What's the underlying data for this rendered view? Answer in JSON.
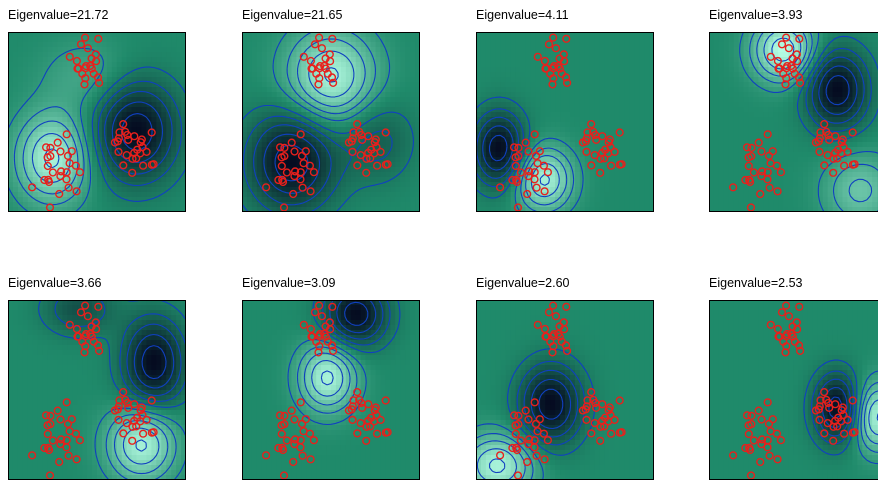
{
  "chart_data": [
    {
      "type": "heatmap",
      "title": "Eigenvalue=21.72",
      "eigenvalue": 21.72,
      "blobs": [
        {
          "cx": 0.25,
          "cy": 0.7,
          "amp": 0.9,
          "sx": 0.14,
          "sy": 0.17
        },
        {
          "cx": 0.72,
          "cy": 0.55,
          "amp": -1.0,
          "sx": 0.16,
          "sy": 0.19
        },
        {
          "cx": 0.45,
          "cy": 0.25,
          "amp": 0.25,
          "sx": 0.18,
          "sy": 0.14
        }
      ]
    },
    {
      "type": "heatmap",
      "title": "Eigenvalue=21.65",
      "eigenvalue": 21.65,
      "blobs": [
        {
          "cx": 0.5,
          "cy": 0.25,
          "amp": 0.9,
          "sx": 0.17,
          "sy": 0.18
        },
        {
          "cx": 0.28,
          "cy": 0.72,
          "amp": -1.0,
          "sx": 0.17,
          "sy": 0.19
        },
        {
          "cx": 0.76,
          "cy": 0.6,
          "amp": -0.35,
          "sx": 0.14,
          "sy": 0.16
        }
      ]
    },
    {
      "type": "heatmap",
      "title": "Eigenvalue=4.11",
      "eigenvalue": 4.11,
      "blobs": [
        {
          "cx": 0.13,
          "cy": 0.65,
          "amp": -1.0,
          "sx": 0.1,
          "sy": 0.14
        },
        {
          "cx": 0.38,
          "cy": 0.82,
          "amp": 0.9,
          "sx": 0.11,
          "sy": 0.12
        }
      ]
    },
    {
      "type": "heatmap",
      "title": "Eigenvalue=3.93",
      "eigenvalue": 3.93,
      "blobs": [
        {
          "cx": 0.42,
          "cy": 0.1,
          "amp": 1.0,
          "sx": 0.12,
          "sy": 0.12
        },
        {
          "cx": 0.72,
          "cy": 0.32,
          "amp": -1.0,
          "sx": 0.12,
          "sy": 0.15
        },
        {
          "cx": 0.85,
          "cy": 0.88,
          "amp": 0.5,
          "sx": 0.14,
          "sy": 0.14
        }
      ]
    },
    {
      "type": "heatmap",
      "title": "Eigenvalue=3.66",
      "eigenvalue": 3.66,
      "blobs": [
        {
          "cx": 0.82,
          "cy": 0.35,
          "amp": -1.0,
          "sx": 0.12,
          "sy": 0.17
        },
        {
          "cx": 0.75,
          "cy": 0.8,
          "amp": 0.9,
          "sx": 0.13,
          "sy": 0.14
        },
        {
          "cx": 0.4,
          "cy": 0.05,
          "amp": -0.45,
          "sx": 0.14,
          "sy": 0.1
        }
      ]
    },
    {
      "type": "heatmap",
      "title": "Eigenvalue=3.09",
      "eigenvalue": 3.09,
      "blobs": [
        {
          "cx": 0.64,
          "cy": 0.08,
          "amp": -1.0,
          "sx": 0.12,
          "sy": 0.12
        },
        {
          "cx": 0.48,
          "cy": 0.43,
          "amp": 0.9,
          "sx": 0.11,
          "sy": 0.13
        }
      ]
    },
    {
      "type": "heatmap",
      "title": "Eigenvalue=2.60",
      "eigenvalue": 2.6,
      "blobs": [
        {
          "cx": 0.42,
          "cy": 0.58,
          "amp": -1.0,
          "sx": 0.12,
          "sy": 0.15
        },
        {
          "cx": 0.12,
          "cy": 0.92,
          "amp": 0.9,
          "sx": 0.14,
          "sy": 0.12
        }
      ]
    },
    {
      "type": "heatmap",
      "title": "Eigenvalue=2.53",
      "eigenvalue": 2.53,
      "blobs": [
        {
          "cx": 0.72,
          "cy": 0.6,
          "amp": -1.0,
          "sx": 0.09,
          "sy": 0.13
        },
        {
          "cx": 0.95,
          "cy": 0.65,
          "amp": 0.9,
          "sx": 0.1,
          "sy": 0.13
        }
      ]
    }
  ],
  "colors": {
    "frame": "#000000",
    "contour": "#1040c0",
    "marker": "#e8201c",
    "base": "#1f8a6a",
    "dark": "#050a20",
    "light": "#b8ffe6"
  }
}
